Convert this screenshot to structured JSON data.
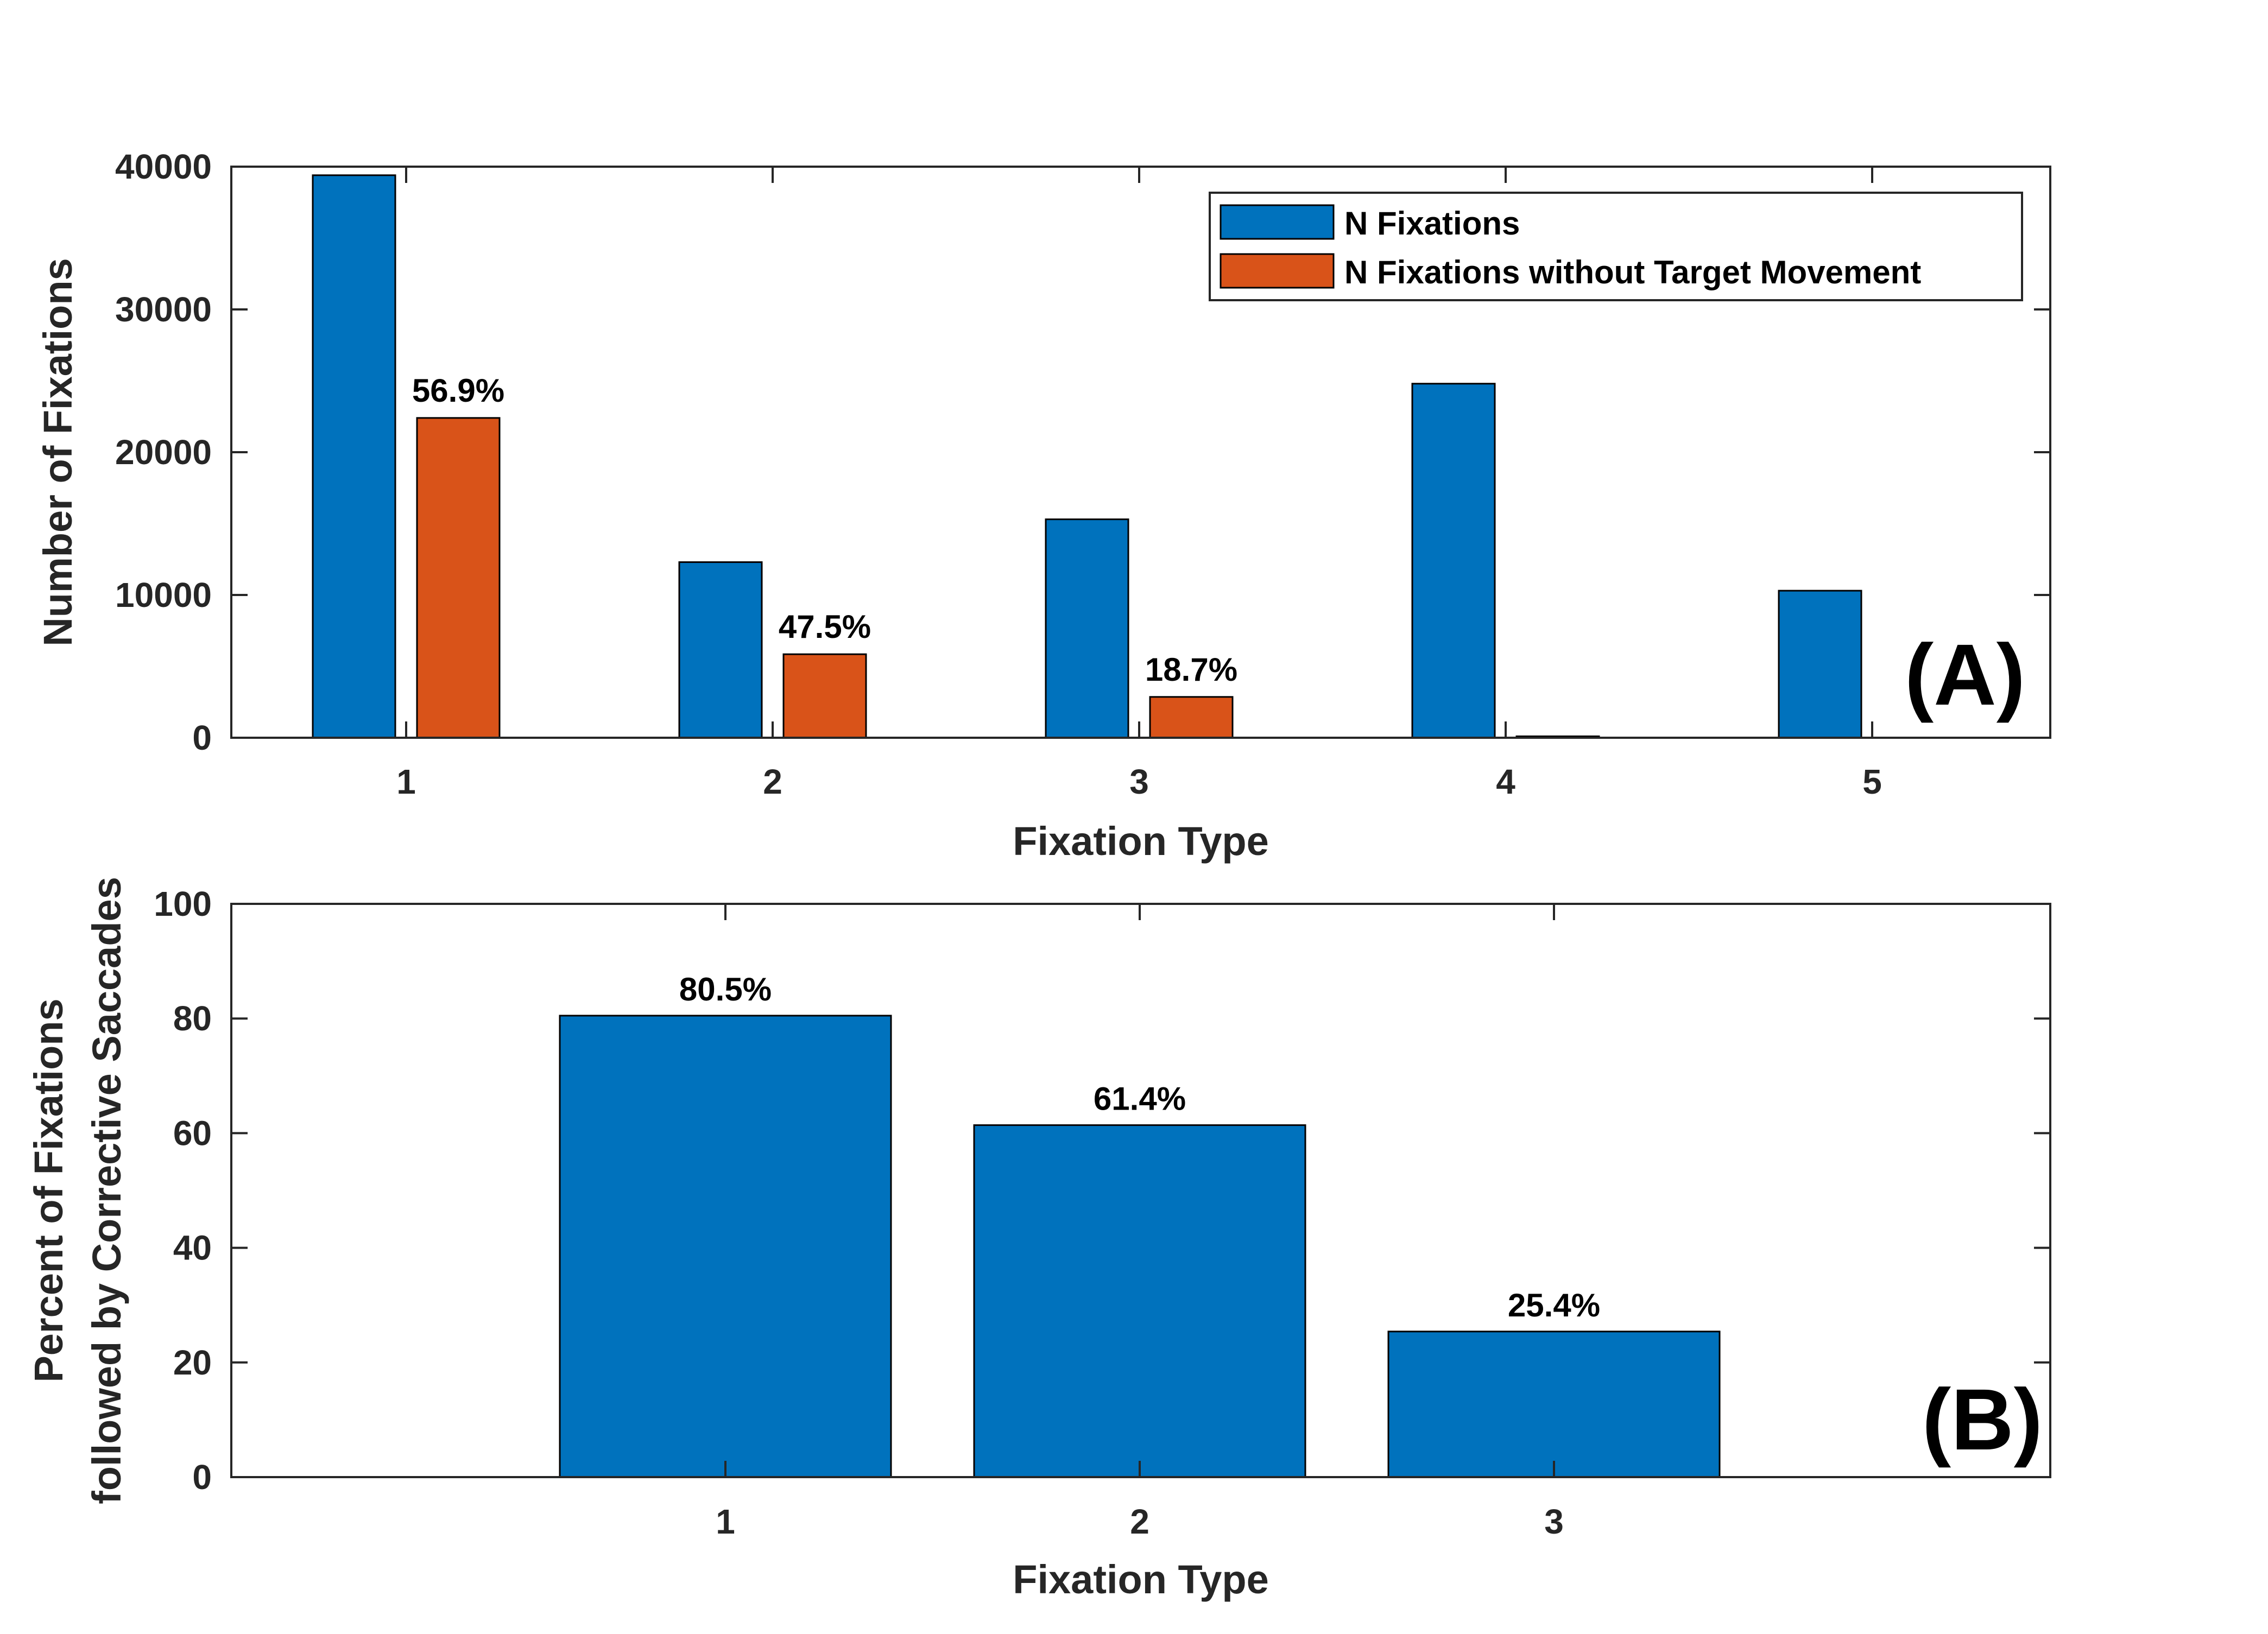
{
  "chart_data": [
    {
      "type": "bar",
      "panel_label": "(A)",
      "xlabel": "Fixation Type",
      "ylabel": "Number of Fixations",
      "categories": [
        "1",
        "2",
        "3",
        "4",
        "5"
      ],
      "ylim": [
        0,
        40000
      ],
      "yticks": [
        "0",
        "10000",
        "20000",
        "30000",
        "40000"
      ],
      "series": [
        {
          "name": "N Fixations",
          "color": "#0072BD",
          "values": [
            39400,
            12300,
            15300,
            24800,
            10300
          ]
        },
        {
          "name": "N Fixations without Target Movement",
          "color": "#D95319",
          "values": [
            22400,
            5850,
            2860,
            100,
            0
          ]
        }
      ],
      "bar_labels": [
        "56.9%",
        "47.5%",
        "18.7%",
        "",
        ""
      ],
      "legend": "top-right",
      "grid": false
    },
    {
      "type": "bar",
      "panel_label": "(B)",
      "xlabel": "Fixation Type",
      "ylabel": [
        "Percent of Fixations",
        "followed by Corrective Saccades"
      ],
      "categories": [
        "1",
        "2",
        "3"
      ],
      "ylim": [
        0,
        100
      ],
      "yticks": [
        "0",
        "20",
        "40",
        "60",
        "80",
        "100"
      ],
      "series": [
        {
          "color": "#0072BD",
          "values": [
            80.5,
            61.4,
            25.4
          ]
        }
      ],
      "bar_labels": [
        "80.5%",
        "61.4%",
        "25.4%"
      ],
      "grid": false
    }
  ]
}
